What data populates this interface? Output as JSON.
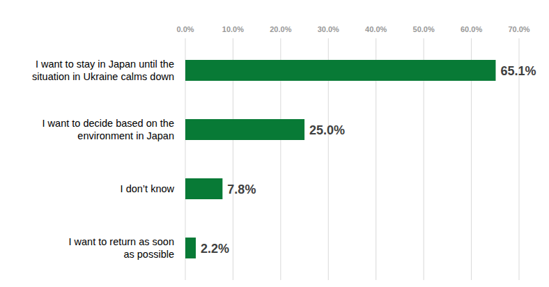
{
  "chart_data": {
    "type": "bar",
    "orientation": "horizontal",
    "categories": [
      "I want to stay in Japan until the\nsituation in Ukraine calms down",
      "I want to decide based on the\nenvironment in Japan",
      "I don’t know",
      "I want to return as soon\nas possible"
    ],
    "values": [
      65.1,
      25.0,
      7.8,
      2.2
    ],
    "value_labels": [
      "65.1%",
      "25.0%",
      "7.8%",
      "2.2%"
    ],
    "color": "#087a36",
    "xlim": [
      0,
      70
    ],
    "xticks": [
      {
        "value": 0,
        "label": "0.0%"
      },
      {
        "value": 10,
        "label": "10.0%"
      },
      {
        "value": 20,
        "label": "20.0%"
      },
      {
        "value": 30,
        "label": "30.0%"
      },
      {
        "value": 40,
        "label": "40.0%"
      },
      {
        "value": 50,
        "label": "50.0%"
      },
      {
        "value": 60,
        "label": "60.0%"
      },
      {
        "value": 70,
        "label": "70.0%"
      }
    ],
    "grid": true,
    "data_labels": true
  }
}
